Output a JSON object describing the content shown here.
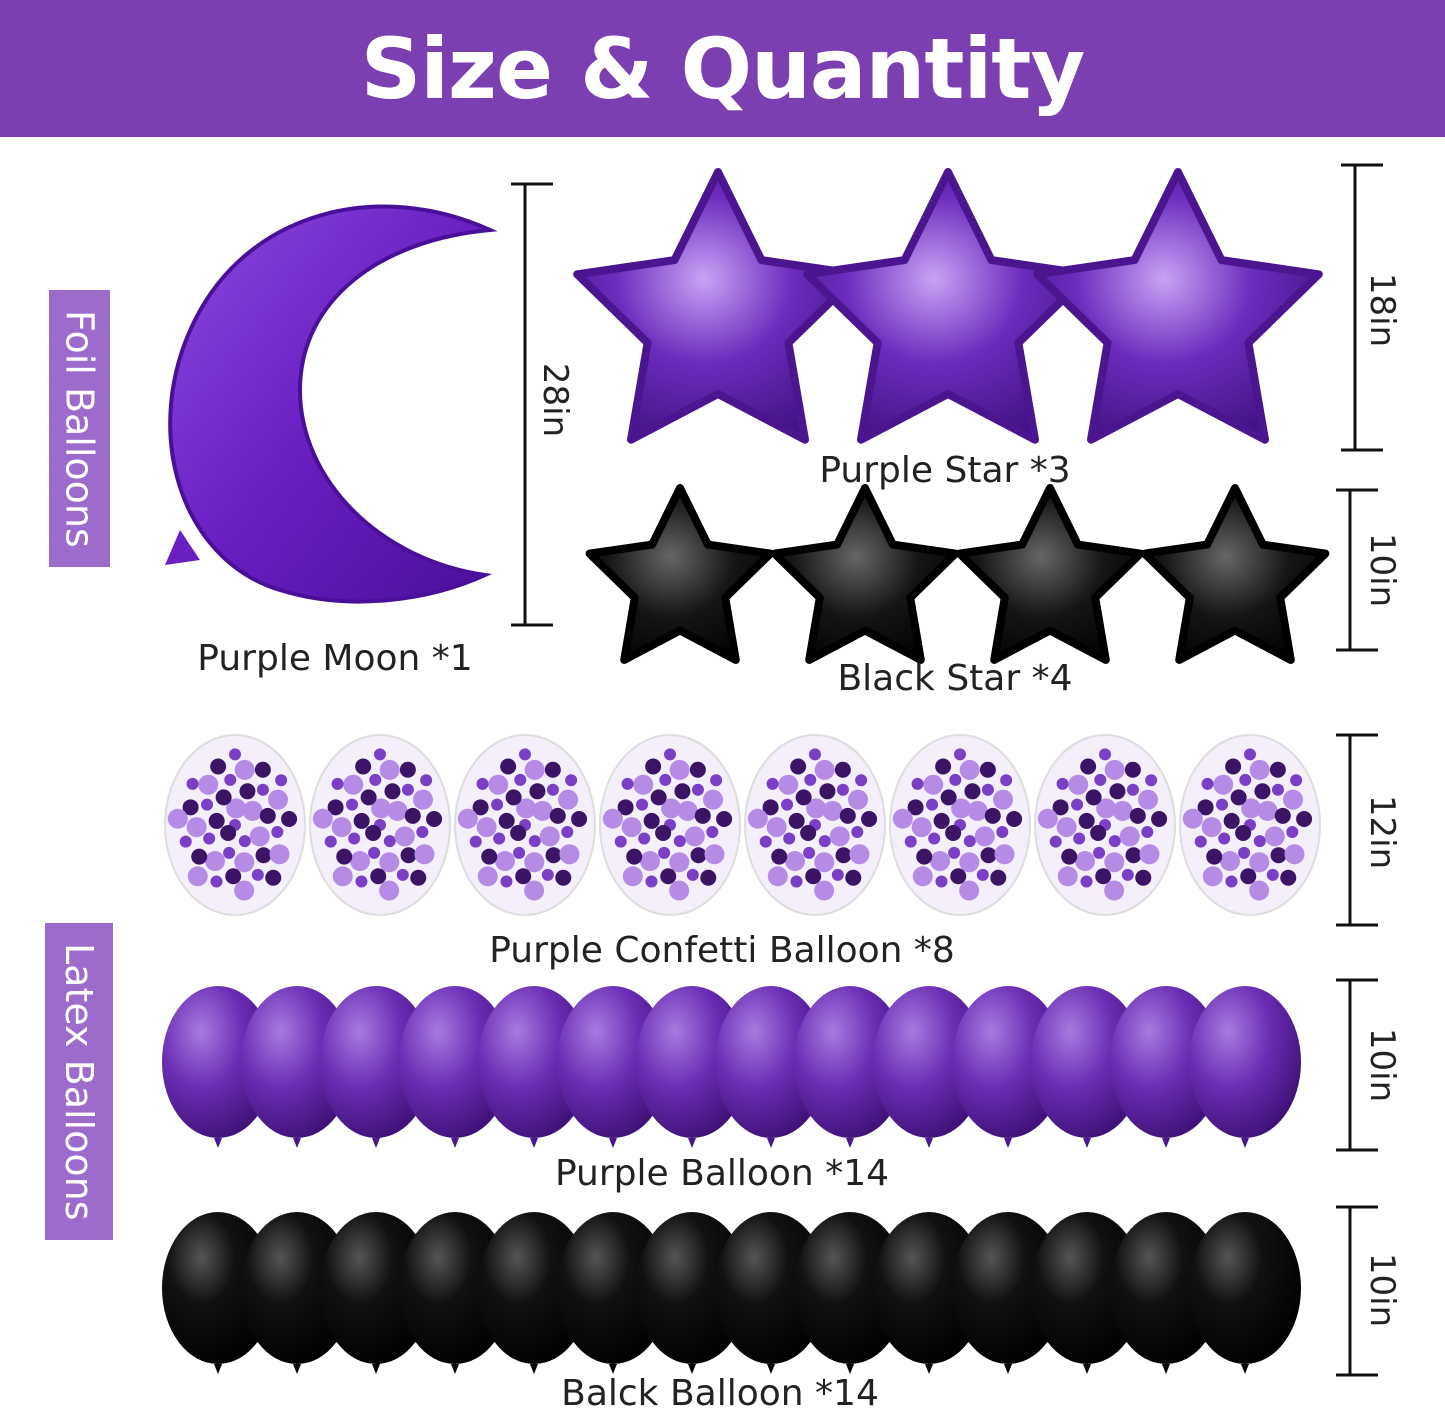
{
  "title": "Size & Quantity",
  "sections": {
    "foil": "Foil Balloons",
    "latex": "Latex Balloons"
  },
  "items": {
    "moon": {
      "label": "Purple Moon *1",
      "size": "28in",
      "quantity": 1,
      "color": "#6a1fc2"
    },
    "purple_star": {
      "label": "Purple Star *3",
      "size": "18in",
      "quantity": 3,
      "color": "#6b2bbd"
    },
    "black_star": {
      "label": "Black Star *4",
      "size": "10in",
      "quantity": 4,
      "color": "#111111"
    },
    "confetti": {
      "label": "Purple Confetti Balloon *8",
      "size": "12in",
      "quantity": 8,
      "color": "#7a3fc4"
    },
    "purple_balloon": {
      "label": "Purple Balloon *14",
      "size": "10in",
      "quantity": 14,
      "color": "#6a2cb4"
    },
    "black_balloon": {
      "label": "Balck Balloon *14",
      "size": "10in",
      "quantity": 14,
      "color": "#0c0c0c"
    }
  },
  "colors": {
    "header": "#7b3fb1",
    "side_label": "#9c6bcc"
  }
}
